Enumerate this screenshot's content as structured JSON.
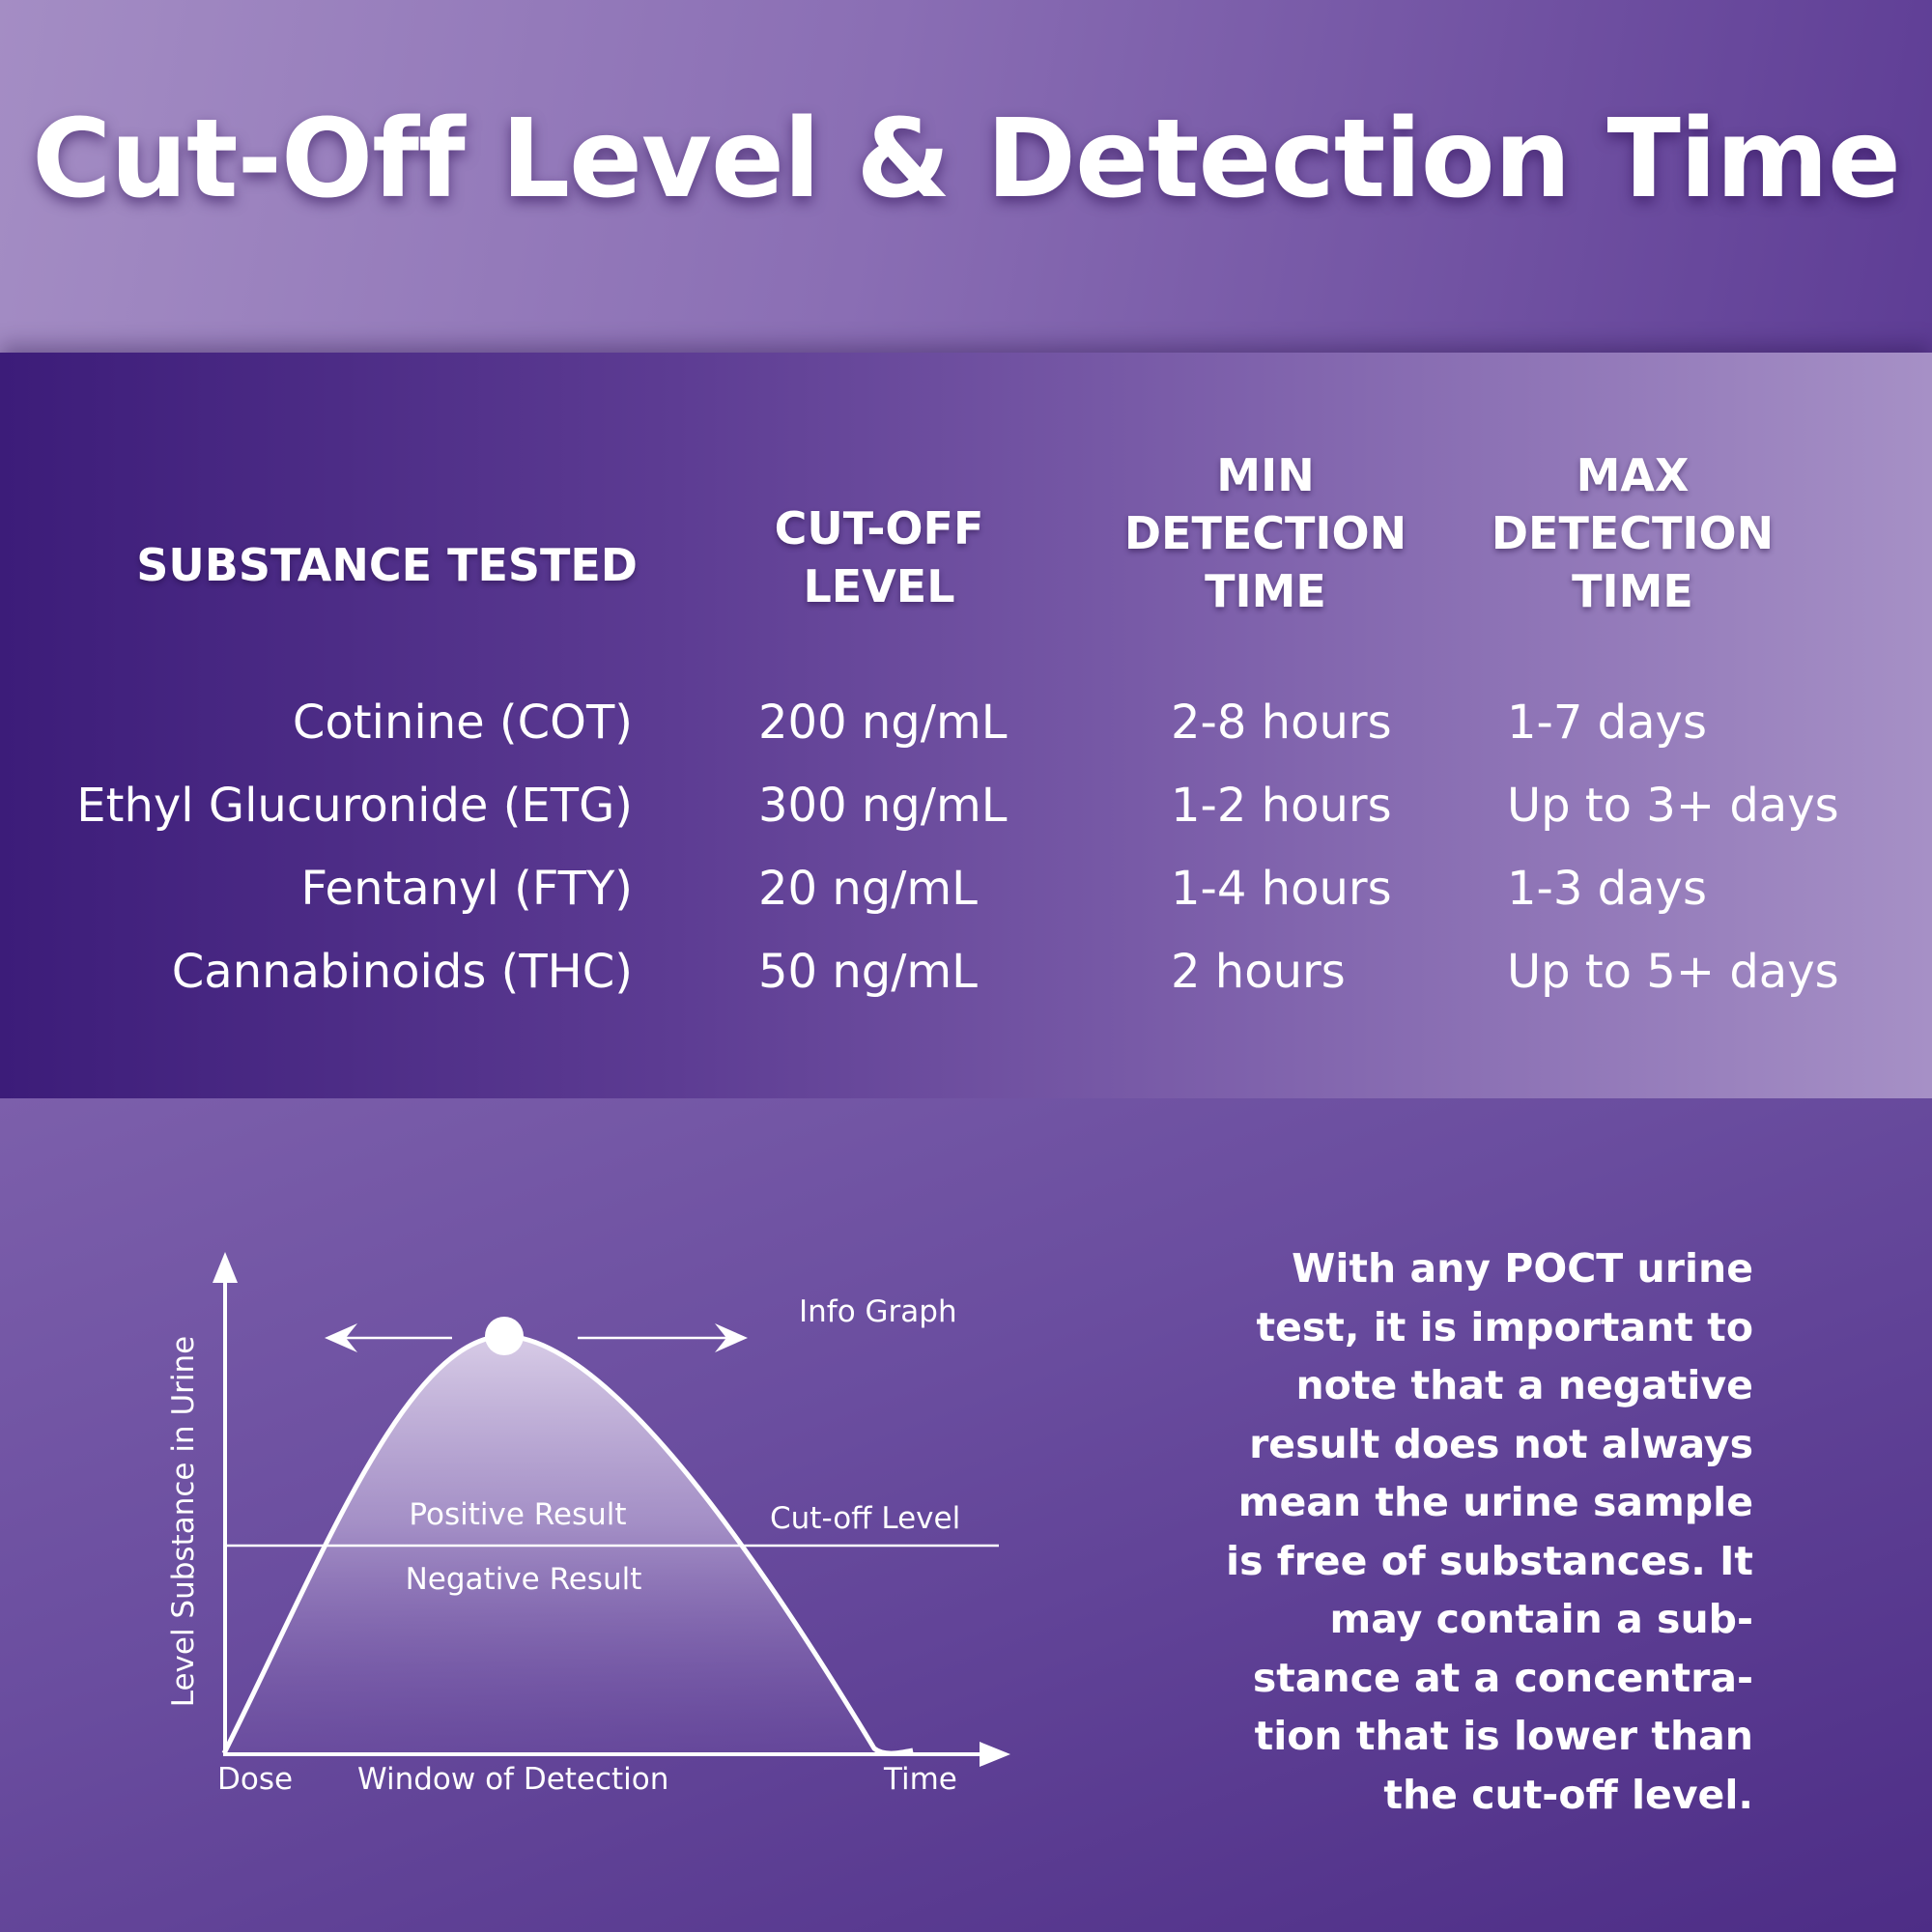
{
  "title": "Cut-Off Level & Detection Time",
  "table": {
    "headers": {
      "substance": [
        "SUBSTANCE TESTED"
      ],
      "cutoff": [
        "CUT-OFF",
        "LEVEL"
      ],
      "min": [
        "MIN",
        "DETECTION",
        "TIME"
      ],
      "max": [
        "MAX",
        "DETECTION",
        "TIME"
      ]
    },
    "rows": [
      {
        "substance": "Cotinine (COT)",
        "cutoff": "200 ng/mL",
        "min": "2-8 hours",
        "max": "1-7 days"
      },
      {
        "substance": "Ethyl Glucuronide (ETG)",
        "cutoff": "300 ng/mL",
        "min": "1-2 hours",
        "max": "Up to 3+ days"
      },
      {
        "substance": "Fentanyl (FTY)",
        "cutoff": "20 ng/mL",
        "min": "1-4 hours",
        "max": "1-3 days"
      },
      {
        "substance": "Cannabinoids (THC)",
        "cutoff": "50 ng/mL",
        "min": "2 hours",
        "max": "Up to 5+ days"
      }
    ]
  },
  "graph": {
    "y_axis_label": "Level Substance in Urine",
    "info_label": "Info Graph",
    "positive_label": "Positive Result",
    "negative_label": "Negative Result",
    "cutoff_label": "Cut-off Level",
    "dose_label": "Dose",
    "window_label": "Window of Detection",
    "time_label": "Time"
  },
  "note_lines": [
    "With any POCT urine",
    "test, it is important to",
    "note that a negative",
    "result does not always",
    "mean the urine sample",
    "is free of substances. It",
    "may contain a sub-",
    "stance at a concentra-",
    "tion that is lower than",
    "the cut-off level."
  ],
  "colors": {
    "text": "#ffffff",
    "dark_purple": "#3c1c79",
    "light_purple": "#a690c6"
  }
}
